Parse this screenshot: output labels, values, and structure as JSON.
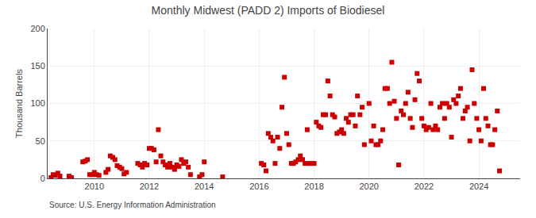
{
  "chart_data": {
    "type": "scatter",
    "title": "Monthly Midwest (PADD 2) Imports of Biodiesel",
    "ylabel": "Thousand Barrels",
    "annotations": [
      "Source: U.S. Energy Information Administration"
    ],
    "color": "#cc0000",
    "marker": "square",
    "grid": true,
    "xlim": [
      2008.3,
      2025.5
    ],
    "xticks": [
      2010,
      2012,
      2014,
      2016,
      2018,
      2020,
      2022,
      2024
    ],
    "ylim": [
      0,
      200
    ],
    "yticks": [
      0,
      50,
      100,
      150,
      200
    ],
    "x": [
      2008.42,
      2008.5,
      2008.58,
      2008.67,
      2008.75,
      2009.08,
      2009.17,
      2009.58,
      2009.67,
      2009.75,
      2009.83,
      2009.92,
      2010.0,
      2010.08,
      2010.17,
      2010.42,
      2010.5,
      2010.58,
      2010.67,
      2010.75,
      2010.83,
      2010.92,
      2011.0,
      2011.08,
      2011.17,
      2011.58,
      2011.67,
      2011.75,
      2011.83,
      2011.92,
      2012.0,
      2012.08,
      2012.17,
      2012.25,
      2012.33,
      2012.42,
      2012.5,
      2012.58,
      2012.67,
      2012.75,
      2012.83,
      2012.92,
      2013.0,
      2013.08,
      2013.17,
      2013.25,
      2013.33,
      2013.42,
      2013.5,
      2013.83,
      2013.92,
      2014.0,
      2014.67,
      2016.08,
      2016.17,
      2016.25,
      2016.33,
      2016.42,
      2016.5,
      2016.58,
      2016.67,
      2016.75,
      2016.83,
      2016.92,
      2017.0,
      2017.08,
      2017.17,
      2017.25,
      2017.33,
      2017.42,
      2017.5,
      2017.58,
      2017.67,
      2017.75,
      2017.83,
      2017.92,
      2018.0,
      2018.08,
      2018.17,
      2018.25,
      2018.33,
      2018.42,
      2018.5,
      2018.58,
      2018.67,
      2018.75,
      2018.83,
      2018.92,
      2019.0,
      2019.08,
      2019.17,
      2019.25,
      2019.33,
      2019.42,
      2019.5,
      2019.58,
      2019.67,
      2019.75,
      2019.83,
      2020.0,
      2020.08,
      2020.17,
      2020.25,
      2020.33,
      2020.42,
      2020.5,
      2020.58,
      2020.67,
      2020.75,
      2020.83,
      2020.92,
      2021.0,
      2021.08,
      2021.17,
      2021.25,
      2021.33,
      2021.42,
      2021.5,
      2021.58,
      2021.67,
      2021.75,
      2021.83,
      2021.92,
      2022.0,
      2022.08,
      2022.17,
      2022.25,
      2022.33,
      2022.42,
      2022.5,
      2022.58,
      2022.67,
      2022.75,
      2022.83,
      2022.92,
      2023.0,
      2023.08,
      2023.17,
      2023.25,
      2023.33,
      2023.42,
      2023.5,
      2023.58,
      2023.67,
      2023.75,
      2023.83,
      2023.92,
      2024.0,
      2024.08,
      2024.17,
      2024.25,
      2024.33,
      2024.42,
      2024.5,
      2024.58,
      2024.67,
      2024.75
    ],
    "values": [
      1,
      5,
      4,
      7,
      3,
      3,
      1,
      22,
      23,
      25,
      5,
      5,
      8,
      5,
      4,
      8,
      12,
      30,
      28,
      25,
      17,
      15,
      13,
      6,
      8,
      20,
      18,
      15,
      20,
      18,
      40,
      40,
      38,
      22,
      65,
      30,
      22,
      18,
      15,
      20,
      15,
      12,
      18,
      16,
      25,
      20,
      22,
      15,
      5,
      2,
      5,
      22,
      2,
      20,
      18,
      10,
      60,
      55,
      50,
      20,
      55,
      40,
      95,
      135,
      60,
      45,
      20,
      20,
      22,
      25,
      30,
      25,
      20,
      65,
      20,
      20,
      20,
      75,
      70,
      68,
      85,
      85,
      130,
      110,
      85,
      82,
      60,
      62,
      65,
      60,
      80,
      75,
      85,
      85,
      70,
      110,
      85,
      95,
      45,
      100,
      50,
      70,
      45,
      45,
      50,
      65,
      120,
      120,
      100,
      155,
      103,
      80,
      18,
      90,
      85,
      100,
      115,
      80,
      68,
      105,
      140,
      130,
      80,
      70,
      65,
      68,
      100,
      65,
      70,
      65,
      95,
      100,
      80,
      100,
      95,
      55,
      105,
      100,
      110,
      120,
      80,
      90,
      95,
      50,
      145,
      100,
      80,
      65,
      50,
      120,
      80,
      70,
      45,
      45,
      65,
      90,
      10
    ]
  }
}
